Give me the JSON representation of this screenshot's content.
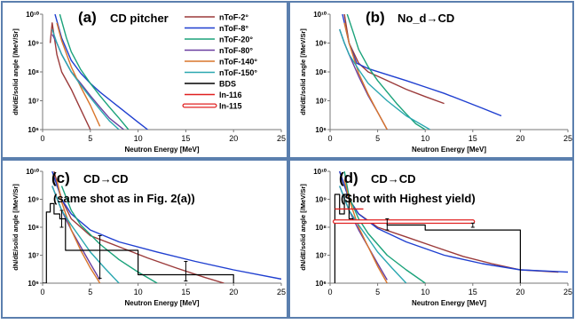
{
  "legend": [
    {
      "label": "nToF-2°",
      "color": "#9b3a3a"
    },
    {
      "label": "nToF-8°",
      "color": "#1f3fd0"
    },
    {
      "label": "nToF-20°",
      "color": "#1aa27a"
    },
    {
      "label": "nToF-80°",
      "color": "#6a3fa0"
    },
    {
      "label": "nToF-140°",
      "color": "#d9762b"
    },
    {
      "label": "nToF-150°",
      "color": "#2aa7b0"
    },
    {
      "label": "BDS",
      "color": "#000000"
    },
    {
      "label": "In-116",
      "color": "#e02020"
    },
    {
      "label": "In-115",
      "color": "#e02020"
    }
  ],
  "chart_data": [
    {
      "type": "line",
      "panel_label": "(a)",
      "title": "CD pitcher",
      "subtitle": "",
      "xlabel": "Neutron Energy [MeV]",
      "ylabel": "dN/dE/solid angle [/MeV/Sr]",
      "xlim": [
        0,
        25
      ],
      "ylim": [
        1000000.0,
        10000000000.0
      ],
      "yscale": "log",
      "x_ticks": [
        0,
        5,
        10,
        15,
        20,
        25
      ],
      "y_ticks": [
        "10⁶",
        "10⁷",
        "10⁸",
        "10⁹",
        "10¹⁰"
      ],
      "series": [
        {
          "name": "nToF-2°",
          "x": [
            0.8,
            1,
            1.5,
            2,
            3,
            4,
            5
          ],
          "y": [
            1000000000.0,
            5000000000.0,
            400000000.0,
            100000000.0,
            25000000.0,
            5000000.0,
            1000000.0
          ]
        },
        {
          "name": "nToF-8°",
          "x": [
            1.3,
            2,
            3,
            4,
            5,
            6,
            8,
            10,
            11
          ],
          "y": [
            10000000000.0,
            1500000000.0,
            250000000.0,
            90000000.0,
            40000000.0,
            20000000.0,
            6000000.0,
            1800000.0,
            1000000.0
          ]
        },
        {
          "name": "nToF-20°",
          "x": [
            1.8,
            2.5,
            3,
            4,
            5,
            6,
            7,
            8,
            9
          ],
          "y": [
            10000000000.0,
            1500000000.0,
            500000000.0,
            120000000.0,
            40000000.0,
            15000000.0,
            6000000.0,
            2500000.0,
            1000000.0
          ]
        },
        {
          "name": "nToF-80°",
          "x": [
            1,
            1.5,
            2,
            3,
            4,
            5,
            6,
            7,
            8.5
          ],
          "y": [
            2000000000.0,
            1000000000.0,
            400000000.0,
            100000000.0,
            40000000.0,
            15000000.0,
            6000000.0,
            2500000.0,
            1000000.0
          ]
        },
        {
          "name": "nToF-140°",
          "x": [
            1.5,
            2,
            3,
            4,
            5,
            6
          ],
          "y": [
            5000000000.0,
            1200000000.0,
            150000000.0,
            30000000.0,
            7000000.0,
            1300000.0
          ]
        },
        {
          "name": "nToF-150°",
          "x": [
            1,
            1.5,
            2,
            3,
            4,
            5,
            6,
            7,
            8
          ],
          "y": [
            3000000000.0,
            1000000000.0,
            400000000.0,
            100000000.0,
            35000000.0,
            13000000.0,
            5000000.0,
            2000000.0,
            1000000.0
          ]
        }
      ]
    },
    {
      "type": "line",
      "panel_label": "(b)",
      "title": "No_d→CD",
      "subtitle": "",
      "xlabel": "Neutron Energy [MeV]",
      "ylabel": "dN/dE/solid angle [/MeV/Sr]",
      "xlim": [
        0,
        25
      ],
      "ylim": [
        1000000.0,
        10000000000.0
      ],
      "yscale": "log",
      "x_ticks": [
        0,
        5,
        10,
        15,
        20,
        25
      ],
      "y_ticks": [
        "10⁶",
        "10⁷",
        "10⁸",
        "10⁹",
        "10¹⁰"
      ],
      "series": [
        {
          "name": "nToF-2°",
          "x": [
            1.5,
            2,
            3,
            4,
            6,
            8,
            10,
            12
          ],
          "y": [
            10000000000.0,
            1000000000.0,
            200000000.0,
            100000000.0,
            50000000.0,
            25000000.0,
            14000000.0,
            8000000.0
          ]
        },
        {
          "name": "nToF-8°",
          "x": [
            1.3,
            2,
            2.8,
            4,
            6,
            8,
            10,
            12,
            14,
            16,
            18
          ],
          "y": [
            10000000000.0,
            1000000000.0,
            200000000.0,
            130000000.0,
            80000000.0,
            50000000.0,
            30000000.0,
            18000000.0,
            10000000.0,
            5500000.0,
            3000000.0
          ]
        },
        {
          "name": "nToF-20°",
          "x": [
            1.8,
            2.5,
            3,
            4,
            5,
            6,
            7,
            8,
            9,
            10
          ],
          "y": [
            10000000000.0,
            2000000000.0,
            600000000.0,
            150000000.0,
            50000000.0,
            20000000.0,
            8000000.0,
            3500000.0,
            1600000.0,
            1000000.0
          ]
        },
        {
          "name": "nToF-80°",
          "x": [
            1,
            1.5,
            2,
            3,
            4,
            5,
            6
          ],
          "y": [
            3000000000.0,
            1000000000.0,
            400000000.0,
            70000000.0,
            15000000.0,
            4000000.0,
            1000000.0
          ]
        },
        {
          "name": "nToF-140°",
          "x": [
            1.5,
            2,
            3,
            4,
            5,
            6
          ],
          "y": [
            5000000000.0,
            1000000000.0,
            90000000.0,
            17000000.0,
            4000000.0,
            1000000.0
          ]
        },
        {
          "name": "nToF-150°",
          "x": [
            1,
            1.5,
            2,
            3,
            4,
            6,
            8,
            10.5
          ],
          "y": [
            3000000000.0,
            1000000000.0,
            400000000.0,
            120000000.0,
            40000000.0,
            10000000.0,
            3000000.0,
            1000000.0
          ]
        }
      ]
    },
    {
      "type": "line",
      "panel_label": "(c)",
      "title": "CD→CD",
      "subtitle": "(same shot as in Fig. 2(a))",
      "xlabel": "Neutron Energy [MeV]",
      "ylabel": "dN/dE/solid angle [/MeV/Sr]",
      "xlim": [
        0,
        25
      ],
      "ylim": [
        1000000.0,
        10000000000.0
      ],
      "yscale": "log",
      "x_ticks": [
        0,
        5,
        10,
        15,
        20,
        25
      ],
      "y_ticks": [
        "10⁶",
        "10⁷",
        "10⁸",
        "10⁹",
        "10¹⁰"
      ],
      "series": [
        {
          "name": "nToF-2°",
          "x": [
            1.2,
            2,
            3,
            5,
            8,
            11,
            14,
            17,
            19
          ],
          "y": [
            10000000000.0,
            1000000000.0,
            200000000.0,
            50000000.0,
            20000000.0,
            8000000.0,
            3500000.0,
            1600000.0,
            1000000.0
          ]
        },
        {
          "name": "nToF-8°",
          "x": [
            1,
            2,
            3,
            5,
            8,
            12,
            16,
            20,
            25
          ],
          "y": [
            10000000000.0,
            1000000000.0,
            300000000.0,
            80000000.0,
            30000000.0,
            13000000.0,
            6000000.0,
            3000000.0,
            1400000.0
          ]
        },
        {
          "name": "nToF-20°",
          "x": [
            2,
            3,
            4,
            6,
            8,
            10,
            12
          ],
          "y": [
            3000000000.0,
            400000000.0,
            120000000.0,
            25000000.0,
            7000000.0,
            2500000.0,
            1000000.0
          ]
        },
        {
          "name": "nToF-80°",
          "x": [
            1,
            2,
            3,
            4,
            5,
            6
          ],
          "y": [
            3000000000.0,
            400000000.0,
            80000000.0,
            20000000.0,
            5000000.0,
            1300000.0
          ]
        },
        {
          "name": "nToF-140°",
          "x": [
            1.5,
            2,
            3,
            4,
            5,
            6
          ],
          "y": [
            5000000000.0,
            800000000.0,
            80000000.0,
            15000000.0,
            3500000.0,
            1000000.0
          ]
        },
        {
          "name": "nToF-150°",
          "x": [
            1,
            2,
            3,
            4,
            5,
            6.5,
            8
          ],
          "y": [
            3000000000.0,
            400000000.0,
            120000000.0,
            40000000.0,
            13000000.0,
            3500000.0,
            1000000.0
          ]
        },
        {
          "name": "BDS",
          "type": "step",
          "x": [
            0,
            0.4,
            0.4,
            0.8,
            0.8,
            1.2,
            1.2,
            1.8,
            1.8,
            2.4,
            2.4,
            6,
            6,
            10,
            10,
            15,
            15,
            20,
            20
          ],
          "y": [
            1000000.0,
            1000000.0,
            350000000.0,
            350000000.0,
            700000000.0,
            700000000.0,
            300000000.0,
            300000000.0,
            200000000.0,
            200000000.0,
            15000000.0,
            15000000.0,
            15000000.0,
            15000000.0,
            2000000.0,
            2000000.0,
            2000000.0,
            2000000.0,
            1000000.0
          ]
        }
      ]
    },
    {
      "type": "line",
      "panel_label": "(d)",
      "title": "CD→CD",
      "subtitle": "(Shot with Highest yield)",
      "xlabel": "Neutron Energy [MeV]",
      "ylabel": "dN/dE/solid angle [/MeV/Sr]",
      "xlim": [
        0,
        25
      ],
      "ylim": [
        1000000.0,
        10000000000.0
      ],
      "yscale": "log",
      "x_ticks": [
        0,
        5,
        10,
        15,
        20,
        25
      ],
      "y_ticks": [
        "10⁶",
        "10⁷",
        "10⁸",
        "10⁹",
        "10¹⁰"
      ],
      "series": [
        {
          "name": "nToF-2°",
          "x": [
            1,
            2,
            3,
            5,
            8,
            11,
            14,
            17,
            20,
            24
          ],
          "y": [
            10000000000.0,
            1000000000.0,
            300000000.0,
            100000000.0,
            45000000.0,
            20000000.0,
            9000000.0,
            5000000.0,
            3000000.0,
            2500000.0
          ]
        },
        {
          "name": "nToF-8°",
          "x": [
            1,
            2,
            3,
            5,
            8,
            12,
            16,
            20,
            25
          ],
          "y": [
            10000000000.0,
            1000000000.0,
            300000000.0,
            90000000.0,
            30000000.0,
            10000000.0,
            5000000.0,
            3000000.0,
            2500000.0
          ]
        },
        {
          "name": "nToF-20°",
          "x": [
            1.5,
            2,
            3,
            4,
            6,
            8,
            10
          ],
          "y": [
            10000000000.0,
            1200000000.0,
            200000000.0,
            60000000.0,
            10000000.0,
            3000000.0,
            1000000.0
          ]
        },
        {
          "name": "nToF-80°",
          "x": [
            1,
            2,
            3,
            4,
            5,
            6
          ],
          "y": [
            3000000000.0,
            400000000.0,
            80000000.0,
            20000000.0,
            5000000.0,
            1300000.0
          ]
        },
        {
          "name": "nToF-140°",
          "x": [
            1.5,
            2,
            3,
            4,
            5,
            6
          ],
          "y": [
            5000000000.0,
            1000000000.0,
            100000000.0,
            20000000.0,
            4000000.0,
            1000000.0
          ]
        },
        {
          "name": "nToF-150°",
          "x": [
            1,
            2,
            3,
            4,
            5,
            6.5,
            8
          ],
          "y": [
            3000000000.0,
            400000000.0,
            120000000.0,
            40000000.0,
            13000000.0,
            3500000.0,
            1000000.0
          ]
        },
        {
          "name": "BDS",
          "type": "step",
          "x": [
            0.5,
            0.5,
            1,
            1,
            1.5,
            1.5,
            2,
            2,
            2.4,
            2.4,
            6,
            6,
            10,
            10,
            20,
            20
          ],
          "y": [
            1000000.0,
            1500000000.0,
            1500000000.0,
            300000000.0,
            300000000.0,
            1500000000.0,
            1500000000.0,
            200000000.0,
            200000000.0,
            150000000.0,
            150000000.0,
            120000000.0,
            120000000.0,
            80000000.0,
            80000000.0,
            1000000.0
          ]
        },
        {
          "name": "In-116",
          "x": [
            0.5,
            3.5
          ],
          "y": [
            450000000.0,
            450000000.0
          ]
        },
        {
          "name": "In-115",
          "x": [
            0.5,
            15
          ],
          "y": [
            160000000.0,
            160000000.0
          ]
        }
      ]
    }
  ]
}
